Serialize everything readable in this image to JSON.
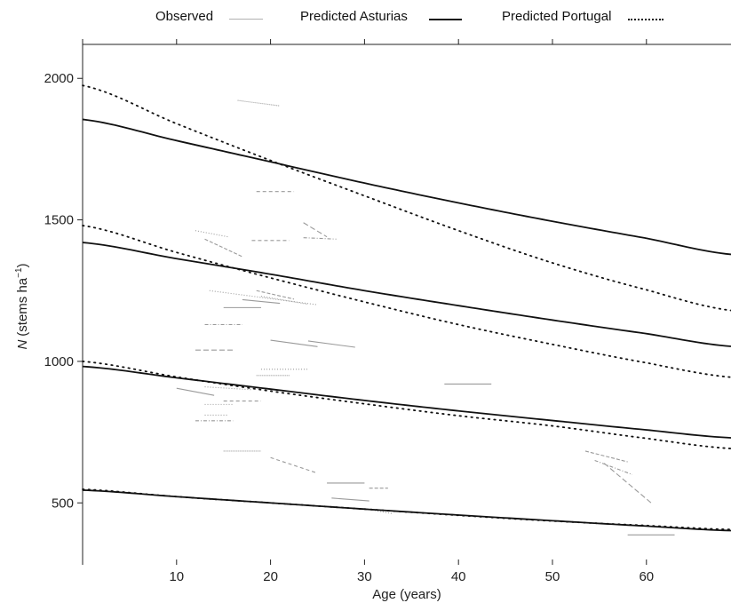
{
  "chart_data": {
    "type": "line",
    "xlabel": "Age (years)",
    "ylabel_main": "N",
    "ylabel_unit_prefix": "(stems ha",
    "ylabel_unit_sup": "−1",
    "ylabel_unit_suffix": ")",
    "xlim": [
      0,
      69
    ],
    "ylim": [
      300,
      2120
    ],
    "xticks": [
      10,
      20,
      30,
      40,
      50,
      60
    ],
    "xtick_labels": [
      "10",
      "20",
      "30",
      "40",
      "50",
      "60"
    ],
    "yticks": [
      500,
      1000,
      1500,
      2000
    ],
    "ytick_labels": [
      "500",
      "1000",
      "1500",
      "2000"
    ],
    "legend": {
      "placement": "top",
      "items": [
        {
          "label": "Observed",
          "style": "thin-gray"
        },
        {
          "label": "Predicted Asturias",
          "style": "solid-black"
        },
        {
          "label": "Predicted Portugal",
          "style": "dotted-black"
        }
      ]
    },
    "series": [
      {
        "name": "Predicted Asturias",
        "style": "solid",
        "curves": [
          {
            "x": [
              0,
              10,
              20,
              30,
              40,
              50,
              60,
              69
            ],
            "y": [
              1855,
              1780,
              1705,
              1630,
              1560,
              1495,
              1435,
              1378
            ]
          },
          {
            "x": [
              0,
              10,
              20,
              30,
              40,
              50,
              60,
              69
            ],
            "y": [
              1420,
              1363,
              1308,
              1250,
              1197,
              1146,
              1098,
              1053
            ]
          },
          {
            "x": [
              0,
              10,
              20,
              30,
              40,
              50,
              60,
              69
            ],
            "y": [
              982,
              942,
              902,
              862,
              825,
              791,
              758,
              730
            ]
          },
          {
            "x": [
              0,
              10,
              20,
              30,
              40,
              50,
              60,
              69
            ],
            "y": [
              545,
              522,
              500,
              478,
              457,
              437,
              418,
              402
            ]
          }
        ]
      },
      {
        "name": "Predicted Portugal",
        "style": "dotted",
        "curves": [
          {
            "x": [
              0,
              10,
              20,
              30,
              40,
              50,
              60,
              69
            ],
            "y": [
              1975,
              1840,
              1710,
              1585,
              1462,
              1348,
              1253,
              1180
            ]
          },
          {
            "x": [
              0,
              10,
              20,
              30,
              40,
              50,
              60,
              69
            ],
            "y": [
              1480,
              1385,
              1295,
              1210,
              1130,
              1060,
              995,
              944
            ]
          },
          {
            "x": [
              0,
              10,
              20,
              30,
              40,
              50,
              60,
              69
            ],
            "y": [
              1000,
              945,
              895,
              850,
              808,
              772,
              728,
              692
            ]
          },
          {
            "x": [
              0,
              10,
              20,
              30,
              40,
              50,
              60,
              69
            ],
            "y": [
              548,
              522,
              500,
              478,
              456,
              436,
              420,
              406
            ]
          }
        ]
      },
      {
        "name": "Observed",
        "style": "thin-gray",
        "segments": [
          {
            "x": [
              16.5,
              21
            ],
            "y": [
              1922,
              1903
            ],
            "dash": "1,1"
          },
          {
            "x": [
              18.5,
              22.5
            ],
            "y": [
              1600,
              1600
            ],
            "dash": "4,3"
          },
          {
            "x": [
              12,
              15.5
            ],
            "y": [
              1462,
              1440
            ],
            "dash": "1,2"
          },
          {
            "x": [
              13,
              17
            ],
            "y": [
              1432,
              1370
            ],
            "dash": "4,2"
          },
          {
            "x": [
              18,
              22
            ],
            "y": [
              1427,
              1427
            ],
            "dash": "4,3"
          },
          {
            "x": [
              23.5,
              26
            ],
            "y": [
              1490,
              1440
            ],
            "dash": "6,3"
          },
          {
            "x": [
              23.5,
              27
            ],
            "y": [
              1437,
              1432
            ],
            "dash": "4,2,1,2"
          },
          {
            "x": [
              13.5,
              25
            ],
            "y": [
              1250,
              1200
            ],
            "dash": "1,2"
          },
          {
            "x": [
              18.5,
              22.5
            ],
            "y": [
              1250,
              1220
            ],
            "dash": "4,2"
          },
          {
            "x": [
              19,
              24
            ],
            "y": [
              1230,
              1202
            ],
            "dash": "1,2"
          },
          {
            "x": [
              17,
              21
            ],
            "y": [
              1218,
              1205
            ],
            "dash": ""
          },
          {
            "x": [
              15,
              19
            ],
            "y": [
              1190,
              1190
            ],
            "dash": ""
          },
          {
            "x": [
              13,
              17
            ],
            "y": [
              1130,
              1130
            ],
            "dash": "4,2,1,2"
          },
          {
            "x": [
              20,
              25
            ],
            "y": [
              1075,
              1052
            ],
            "dash": ""
          },
          {
            "x": [
              24,
              29
            ],
            "y": [
              1072,
              1050
            ],
            "dash": ""
          },
          {
            "x": [
              12,
              16
            ],
            "y": [
              1040,
              1040
            ],
            "dash": "6,3"
          },
          {
            "x": [
              19,
              24
            ],
            "y": [
              972,
              972
            ],
            "dash": "1,2"
          },
          {
            "x": [
              18.5,
              22
            ],
            "y": [
              950,
              950
            ],
            "dash": "1,1"
          },
          {
            "x": [
              10,
              14
            ],
            "y": [
              905,
              880
            ],
            "dash": ""
          },
          {
            "x": [
              13,
              18
            ],
            "y": [
              910,
              900
            ],
            "dash": "1,2"
          },
          {
            "x": [
              15,
              19
            ],
            "y": [
              860,
              860
            ],
            "dash": "4,3"
          },
          {
            "x": [
              13,
              16
            ],
            "y": [
              848,
              848
            ],
            "dash": "1,2"
          },
          {
            "x": [
              13,
              15.5
            ],
            "y": [
              810,
              810
            ],
            "dash": "1,2"
          },
          {
            "x": [
              12,
              16
            ],
            "y": [
              790,
              790
            ],
            "dash": "4,2,1,2"
          },
          {
            "x": [
              38.5,
              43.5
            ],
            "y": [
              920,
              920
            ],
            "dash": ""
          },
          {
            "x": [
              15,
              19
            ],
            "y": [
              683,
              683
            ],
            "dash": "1,1"
          },
          {
            "x": [
              20,
              25
            ],
            "y": [
              660,
              605
            ],
            "dash": "4,3"
          },
          {
            "x": [
              26,
              30
            ],
            "y": [
              570,
              570
            ],
            "dash": ""
          },
          {
            "x": [
              30.5,
              32.5
            ],
            "y": [
              552,
              552
            ],
            "dash": "4,2"
          },
          {
            "x": [
              26.5,
              30.5
            ],
            "y": [
              517,
              507
            ],
            "dash": ""
          },
          {
            "x": [
              30,
              33
            ],
            "y": [
              480,
              462
            ],
            "dash": "1,2"
          },
          {
            "x": [
              53.5,
              58
            ],
            "y": [
              683,
              645
            ],
            "dash": "4,2"
          },
          {
            "x": [
              54.5,
              58.5
            ],
            "y": [
              650,
              600
            ],
            "dash": "4,2,1,2"
          },
          {
            "x": [
              55.5,
              60.5
            ],
            "y": [
              640,
              500
            ],
            "dash": "6,3"
          },
          {
            "x": [
              58,
              63
            ],
            "y": [
              387,
              387
            ],
            "dash": ""
          }
        ]
      }
    ]
  }
}
